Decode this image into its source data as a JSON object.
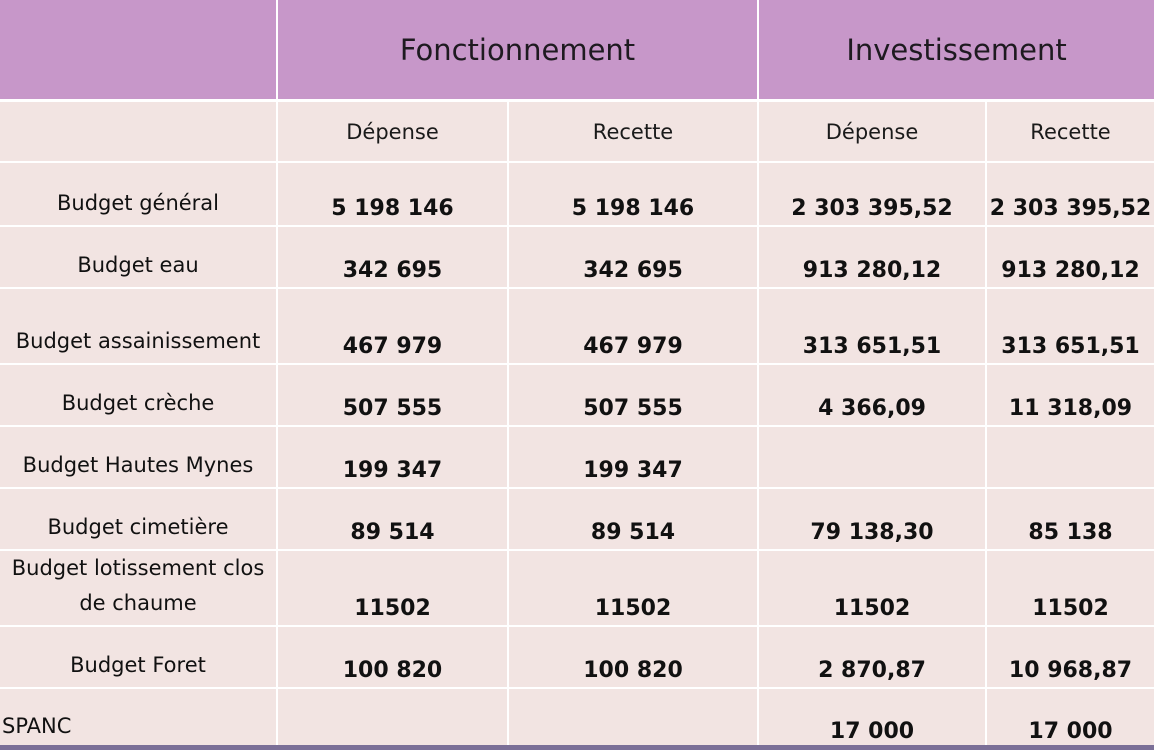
{
  "header": {
    "col_group_1": "Fonctionnement",
    "col_group_2": "Investissement"
  },
  "subheader": {
    "fonct_depense": "Dépense",
    "fonct_recette": "Recette",
    "invest_depense": "Dépense",
    "invest_recette": "Recette"
  },
  "rows": [
    {
      "label": "Budget général",
      "fonct_depense": "5 198 146",
      "fonct_recette": "5 198 146",
      "invest_depense": "2 303 395,52",
      "invest_recette": "2 303 395,52"
    },
    {
      "label": "Budget eau",
      "fonct_depense": "342 695",
      "fonct_recette": "342 695",
      "invest_depense": "913 280,12",
      "invest_recette": "913 280,12"
    },
    {
      "label": "Budget assainissement",
      "fonct_depense": "467 979",
      "fonct_recette": "467 979",
      "invest_depense": "313 651,51",
      "invest_recette": "313 651,51"
    },
    {
      "label": "Budget crèche",
      "fonct_depense": "507 555",
      "fonct_recette": "507 555",
      "invest_depense": "4 366,09",
      "invest_recette": "11 318,09"
    },
    {
      "label": "Budget Hautes Mynes",
      "fonct_depense": "199 347",
      "fonct_recette": "199 347",
      "invest_depense": "",
      "invest_recette": ""
    },
    {
      "label": "Budget cimetière",
      "fonct_depense": "89 514",
      "fonct_recette": "89 514",
      "invest_depense": "79 138,30",
      "invest_recette": "85 138"
    },
    {
      "label": "Budget lotissement clos de chaume",
      "fonct_depense": "11502",
      "fonct_recette": "11502",
      "invest_depense": "11502",
      "invest_recette": "11502"
    },
    {
      "label": "Budget Foret",
      "fonct_depense": "100 820",
      "fonct_recette": "100 820",
      "invest_depense": "2 870,87",
      "invest_recette": "10 968,87"
    },
    {
      "label": "SPANC",
      "fonct_depense": "",
      "fonct_recette": "",
      "invest_depense": "17 000",
      "invest_recette": "17 000"
    }
  ]
}
